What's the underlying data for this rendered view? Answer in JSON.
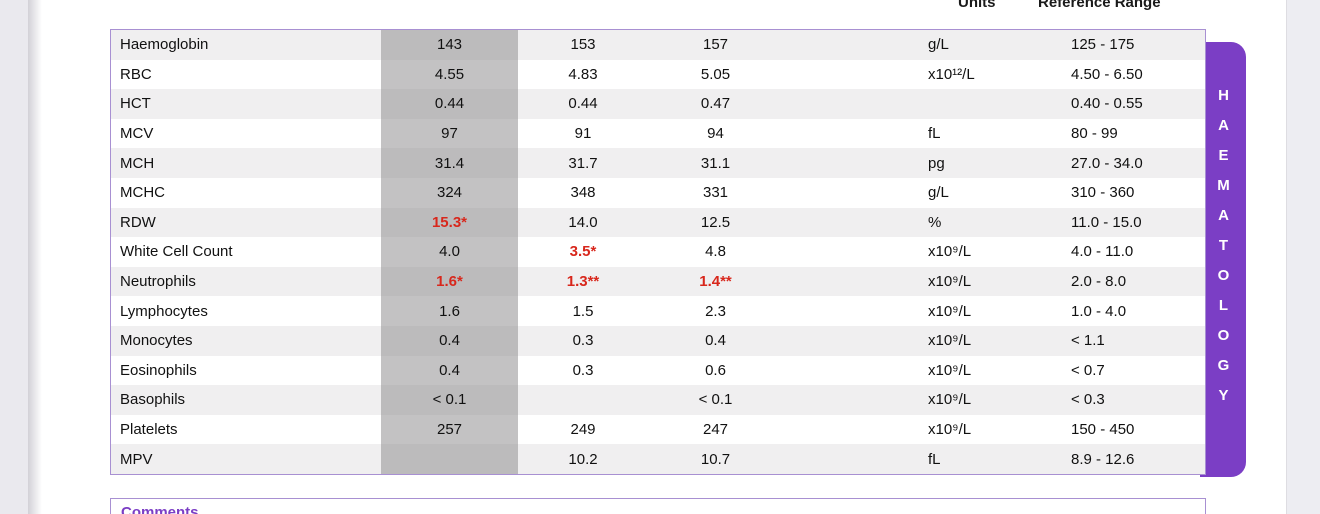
{
  "colors": {
    "accent": "#7b3ec5",
    "table_border": "#a890d2",
    "abnormal_red": "#d8271c",
    "stripe_gray": "#f0eff0",
    "current_result_column_gray": "#c0bfc0"
  },
  "header": {
    "units_label": "Units",
    "reference_label": "Reference Range"
  },
  "section_tab": {
    "label": "HAEMATOLOGY"
  },
  "comments": {
    "title": "Comments"
  },
  "table": {
    "rows": [
      {
        "name": "Haemoglobin",
        "v1": "143",
        "v2": "153",
        "v3": "157",
        "units": "g/L",
        "ref": "125 - 175",
        "abnormal": []
      },
      {
        "name": "RBC",
        "v1": "4.55",
        "v2": "4.83",
        "v3": "5.05",
        "units": "x10¹²/L",
        "ref": "4.50 - 6.50",
        "abnormal": []
      },
      {
        "name": "HCT",
        "v1": "0.44",
        "v2": "0.44",
        "v3": "0.47",
        "units": "",
        "ref": "0.40 - 0.55",
        "abnormal": []
      },
      {
        "name": "MCV",
        "v1": "97",
        "v2": "91",
        "v3": "94",
        "units": "fL",
        "ref": "80 - 99",
        "abnormal": []
      },
      {
        "name": "MCH",
        "v1": "31.4",
        "v2": "31.7",
        "v3": "31.1",
        "units": "pg",
        "ref": "27.0 - 34.0",
        "abnormal": []
      },
      {
        "name": "MCHC",
        "v1": "324",
        "v2": "348",
        "v3": "331",
        "units": "g/L",
        "ref": "310 - 360",
        "abnormal": []
      },
      {
        "name": "RDW",
        "v1": "15.3*",
        "v2": "14.0",
        "v3": "12.5",
        "units": "%",
        "ref": "11.0 - 15.0",
        "abnormal": [
          "v1"
        ]
      },
      {
        "name": "White Cell Count",
        "v1": "4.0",
        "v2": "3.5*",
        "v3": "4.8",
        "units": "x10⁹/L",
        "ref": "4.0 - 11.0",
        "abnormal": [
          "v2"
        ]
      },
      {
        "name": "Neutrophils",
        "v1": "1.6*",
        "v2": "1.3**",
        "v3": "1.4**",
        "units": "x10⁹/L",
        "ref": "2.0 - 8.0",
        "abnormal": [
          "v1",
          "v2",
          "v3"
        ]
      },
      {
        "name": "Lymphocytes",
        "v1": "1.6",
        "v2": "1.5",
        "v3": "2.3",
        "units": "x10⁹/L",
        "ref": "1.0 - 4.0",
        "abnormal": []
      },
      {
        "name": "Monocytes",
        "v1": "0.4",
        "v2": "0.3",
        "v3": "0.4",
        "units": "x10⁹/L",
        "ref": "< 1.1",
        "abnormal": []
      },
      {
        "name": "Eosinophils",
        "v1": "0.4",
        "v2": "0.3",
        "v3": "0.6",
        "units": "x10⁹/L",
        "ref": "< 0.7",
        "abnormal": []
      },
      {
        "name": "Basophils",
        "v1": "< 0.1",
        "v2": "",
        "v3": "< 0.1",
        "units": "x10⁹/L",
        "ref": "< 0.3",
        "abnormal": []
      },
      {
        "name": "Platelets",
        "v1": "257",
        "v2": "249",
        "v3": "247",
        "units": "x10⁹/L",
        "ref": "150 - 450",
        "abnormal": []
      },
      {
        "name": "MPV",
        "v1": "",
        "v2": "10.2",
        "v3": "10.7",
        "units": "fL",
        "ref": "8.9 - 12.6",
        "abnormal": []
      }
    ]
  }
}
